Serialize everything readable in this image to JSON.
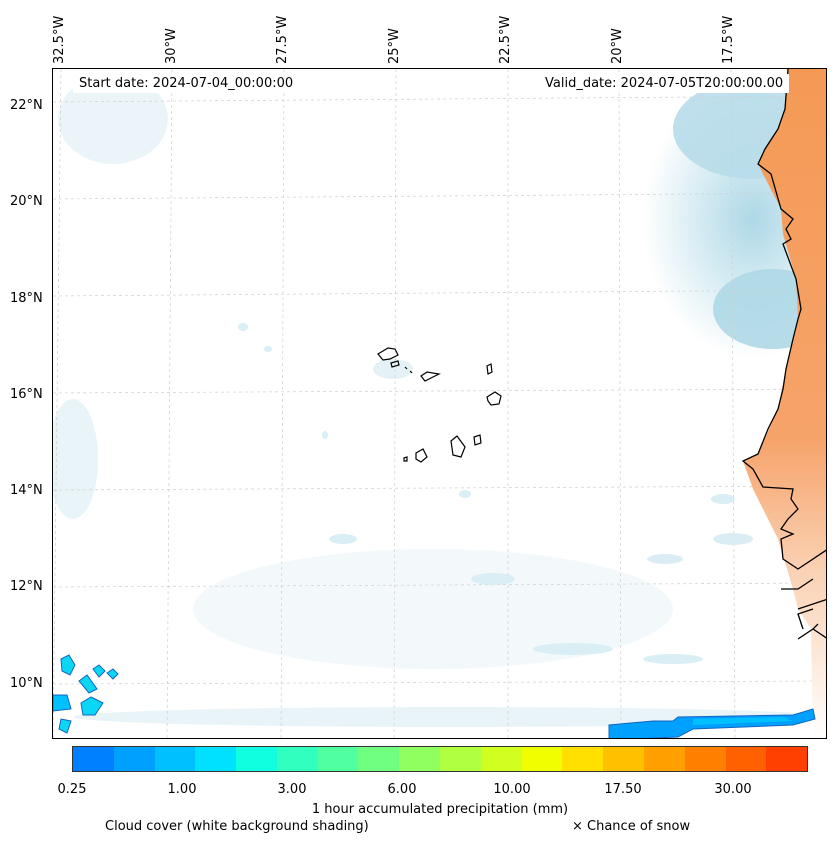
{
  "map": {
    "start_date": "Start date: 2024-07-04_00:00:00",
    "valid_date": "Valid_date: 2024-07-05T20:00:00.00",
    "lon_labels": [
      "32.5°W",
      "30°W",
      "27.5°W",
      "25°W",
      "22.5°W",
      "20°W",
      "17.5°W"
    ],
    "lat_labels": [
      "22°N",
      "20°N",
      "18°N",
      "16°N",
      "14°N",
      "12°N",
      "10°N"
    ]
  },
  "colorbar": {
    "colors": [
      "#0080ff",
      "#00a0ff",
      "#00c0ff",
      "#00e0ff",
      "#10ffe0",
      "#30ffc0",
      "#50ffa0",
      "#70ff80",
      "#90ff60",
      "#b0ff40",
      "#d0ff20",
      "#f0ff00",
      "#ffe000",
      "#ffc000",
      "#ffa000",
      "#ff8000",
      "#ff6000",
      "#ff4000"
    ],
    "tick_labels": [
      "0.25",
      "1.00",
      "3.00",
      "6.00",
      "10.00",
      "17.50",
      "30.00"
    ],
    "title": "1 hour accumulated precipitation (mm)"
  },
  "legend": {
    "cloud_cover": "Cloud cover (white background shading)",
    "snow": "× Chance of snow"
  }
}
